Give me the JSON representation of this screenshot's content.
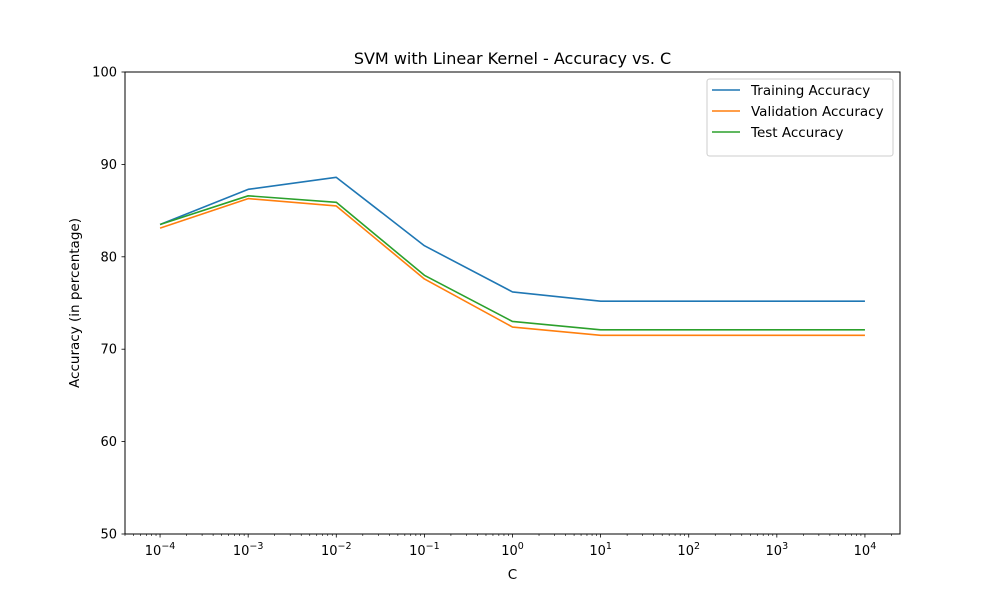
{
  "chart_data": {
    "type": "line",
    "title": "SVM with Linear Kernel - Accuracy vs. C",
    "xlabel": "C",
    "ylabel": "Accuracy (in percentage)",
    "xscale": "log",
    "x": [
      0.0001,
      0.001,
      0.01,
      0.1,
      1,
      10,
      10000
    ],
    "xlim": [
      4e-05,
      25000
    ],
    "ylim": [
      50,
      100
    ],
    "xticks": [
      0.0001,
      0.001,
      0.01,
      0.1,
      1,
      10,
      100,
      1000,
      10000
    ],
    "xtick_labels": [
      {
        "base": "10",
        "exp": "−4"
      },
      {
        "base": "10",
        "exp": "−3"
      },
      {
        "base": "10",
        "exp": "−2"
      },
      {
        "base": "10",
        "exp": "−1"
      },
      {
        "base": "10",
        "exp": "0"
      },
      {
        "base": "10",
        "exp": "1"
      },
      {
        "base": "10",
        "exp": "2"
      },
      {
        "base": "10",
        "exp": "3"
      },
      {
        "base": "10",
        "exp": "4"
      }
    ],
    "yticks": [
      50,
      60,
      70,
      80,
      90,
      100
    ],
    "ytick_labels": [
      "50",
      "60",
      "70",
      "80",
      "90",
      "100"
    ],
    "grid": false,
    "legend_position": "top-right",
    "series": [
      {
        "name": "Training Accuracy",
        "color": "#1f77b4",
        "values": [
          83.5,
          87.3,
          88.6,
          81.2,
          76.2,
          75.2,
          75.2
        ]
      },
      {
        "name": "Validation Accuracy",
        "color": "#ff7f0e",
        "values": [
          83.1,
          86.3,
          85.5,
          77.6,
          72.4,
          71.5,
          71.5
        ]
      },
      {
        "name": "Test Accuracy",
        "color": "#2ca02c",
        "values": [
          83.5,
          86.6,
          85.9,
          78.0,
          73.0,
          72.1,
          72.1
        ]
      }
    ]
  }
}
